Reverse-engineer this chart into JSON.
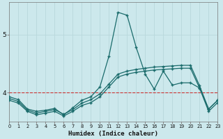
{
  "xlabel": "Humidex (Indice chaleur)",
  "background_color": "#cce8ec",
  "grid_color": "#b8d8dc",
  "line_color": "#1a6b6b",
  "hline_color": "#cc3333",
  "xlim": [
    0,
    23
  ],
  "ylim": [
    3.5,
    5.55
  ],
  "yticks": [
    4,
    5
  ],
  "xticks": [
    0,
    1,
    2,
    3,
    4,
    5,
    6,
    7,
    8,
    9,
    10,
    11,
    12,
    13,
    14,
    15,
    16,
    17,
    18,
    19,
    20,
    21,
    22,
    23
  ],
  "line1_x": [
    0,
    1,
    2,
    3,
    4,
    5,
    6,
    7,
    8,
    9,
    10,
    11,
    12,
    13,
    14,
    15,
    16,
    17,
    18,
    19,
    20,
    21,
    22,
    23
  ],
  "line1_y": [
    3.93,
    3.88,
    3.72,
    3.68,
    3.7,
    3.73,
    3.62,
    3.74,
    3.87,
    3.93,
    4.1,
    4.63,
    5.38,
    5.33,
    4.78,
    4.32,
    4.06,
    4.37,
    4.13,
    4.17,
    4.17,
    4.08,
    3.72,
    3.87
  ],
  "line2_x": [
    0,
    1,
    2,
    3,
    4,
    5,
    6,
    7,
    8,
    9,
    10,
    11,
    12,
    13,
    14,
    15,
    16,
    17,
    18,
    19,
    20,
    21,
    22,
    23
  ],
  "line2_y": [
    3.9,
    3.85,
    3.7,
    3.65,
    3.68,
    3.71,
    3.63,
    3.71,
    3.82,
    3.88,
    3.98,
    4.15,
    4.32,
    4.37,
    4.4,
    4.42,
    4.44,
    4.45,
    4.46,
    4.47,
    4.47,
    4.12,
    3.72,
    3.87
  ],
  "line3_x": [
    0,
    1,
    2,
    3,
    4,
    5,
    6,
    7,
    8,
    9,
    10,
    11,
    12,
    13,
    14,
    15,
    16,
    17,
    18,
    19,
    20,
    21,
    22,
    23
  ],
  "line3_y": [
    3.87,
    3.82,
    3.68,
    3.62,
    3.65,
    3.68,
    3.6,
    3.68,
    3.78,
    3.83,
    3.93,
    4.1,
    4.27,
    4.32,
    4.35,
    4.37,
    4.39,
    4.4,
    4.41,
    4.42,
    4.42,
    4.08,
    3.68,
    3.83
  ],
  "hline_y": 4.0,
  "marker_size": 2.5,
  "line_width": 0.9
}
